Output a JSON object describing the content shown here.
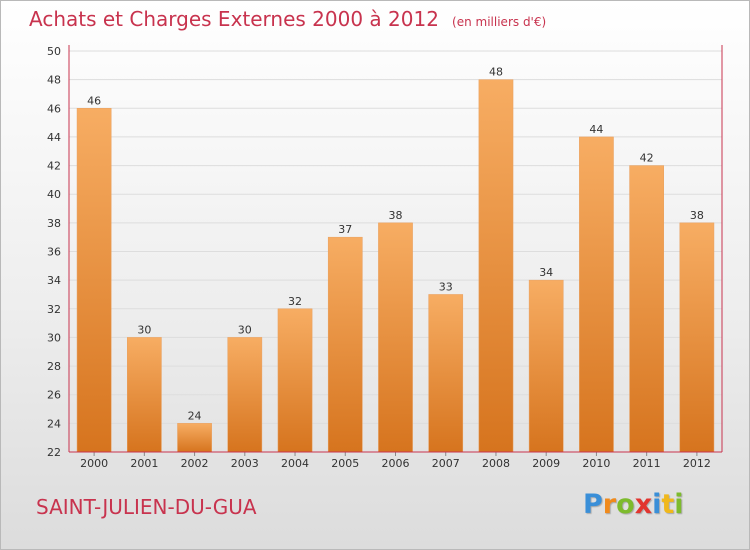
{
  "header": {
    "title": "Achats et Charges Externes 2000 à 2012",
    "unit": "(en milliers d'€)"
  },
  "footer": {
    "commune": "SAINT-JULIEN-DU-GUA",
    "logo_letters": [
      {
        "char": "P",
        "color": "#3a8fd8"
      },
      {
        "char": "r",
        "color": "#f08a1c"
      },
      {
        "char": "o",
        "color": "#7dbb2d"
      },
      {
        "char": "x",
        "color": "#e2352f"
      },
      {
        "char": "i",
        "color": "#3a8fd8"
      },
      {
        "char": "t",
        "color": "#f0b81c"
      },
      {
        "char": "i",
        "color": "#7dbb2d"
      }
    ]
  },
  "colors": {
    "bar_top": "#f7ad63",
    "bar_bottom": "#d6741e",
    "axis": "#c8334e",
    "grid": "#dddddd",
    "title": "#c8334e"
  },
  "chart_data": {
    "type": "bar",
    "categories": [
      "2000",
      "2001",
      "2002",
      "2003",
      "2004",
      "2005",
      "2006",
      "2007",
      "2008",
      "2009",
      "2010",
      "2011",
      "2012"
    ],
    "values": [
      46,
      30,
      24,
      30,
      32,
      37,
      38,
      33,
      48,
      34,
      44,
      42,
      38
    ],
    "title": "Achats et Charges Externes 2000 à 2012",
    "ylim": [
      22,
      50
    ],
    "yticks": [
      22,
      24,
      26,
      28,
      30,
      32,
      34,
      36,
      38,
      40,
      42,
      44,
      46,
      48,
      50
    ],
    "grid": true,
    "legend": "none"
  }
}
